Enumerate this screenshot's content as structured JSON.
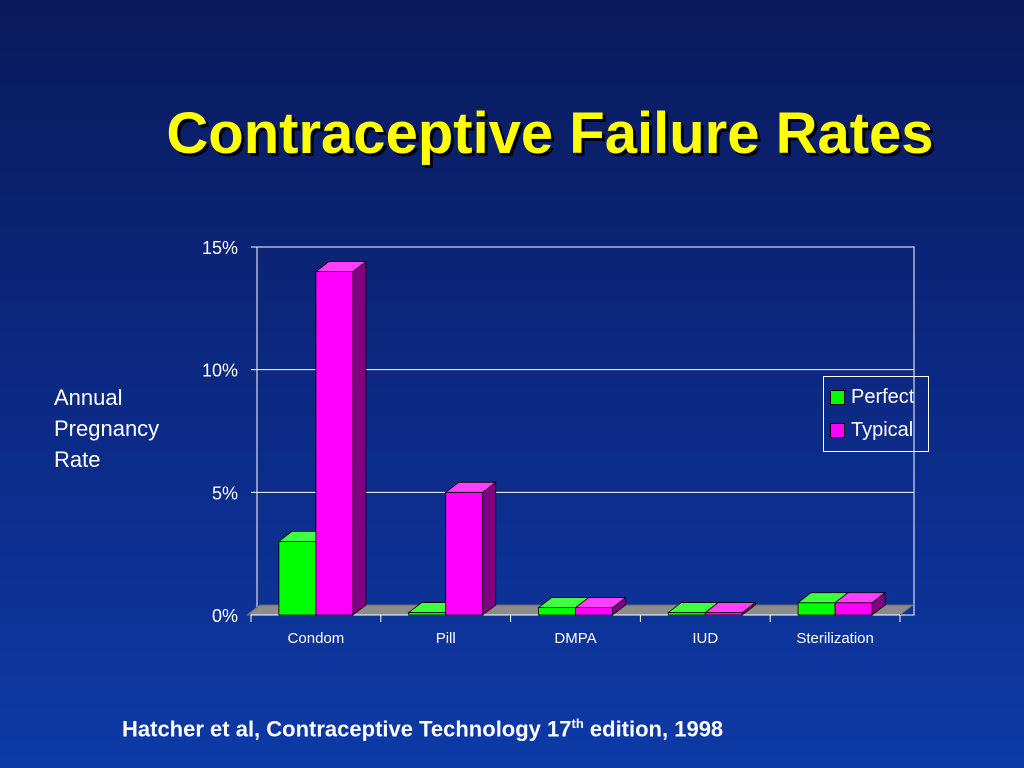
{
  "slide": {
    "title": "Contraceptive Failure Rates",
    "ylabel_lines": [
      "Annual",
      "Pregnancy",
      "Rate"
    ],
    "citation": {
      "prefix": "Hatcher et al, Contraceptive Technology 17",
      "sup": "th",
      "suffix": " edition, 1998"
    }
  },
  "colors": {
    "background": "#0c2a86",
    "title": "#ffff00",
    "perfect": "#00ff00",
    "typical": "#ff00ff",
    "text": "#ffffff"
  },
  "chart_data": {
    "type": "bar",
    "categories": [
      "Condom",
      "Pill",
      "DMPA",
      "IUD",
      "Sterilization"
    ],
    "series": [
      {
        "name": "Perfect",
        "color": "#00ff00",
        "values": [
          3,
          0.1,
          0.3,
          0.1,
          0.5
        ]
      },
      {
        "name": "Typical",
        "color": "#ff00ff",
        "values": [
          14,
          5,
          0.3,
          0.1,
          0.5
        ]
      }
    ],
    "yticks": [
      "0%",
      "5%",
      "10%",
      "15%"
    ],
    "ytick_values": [
      0,
      5,
      10,
      15
    ],
    "ylim": [
      0,
      15
    ],
    "grid": true,
    "legend_position": "right",
    "three_d": true
  }
}
